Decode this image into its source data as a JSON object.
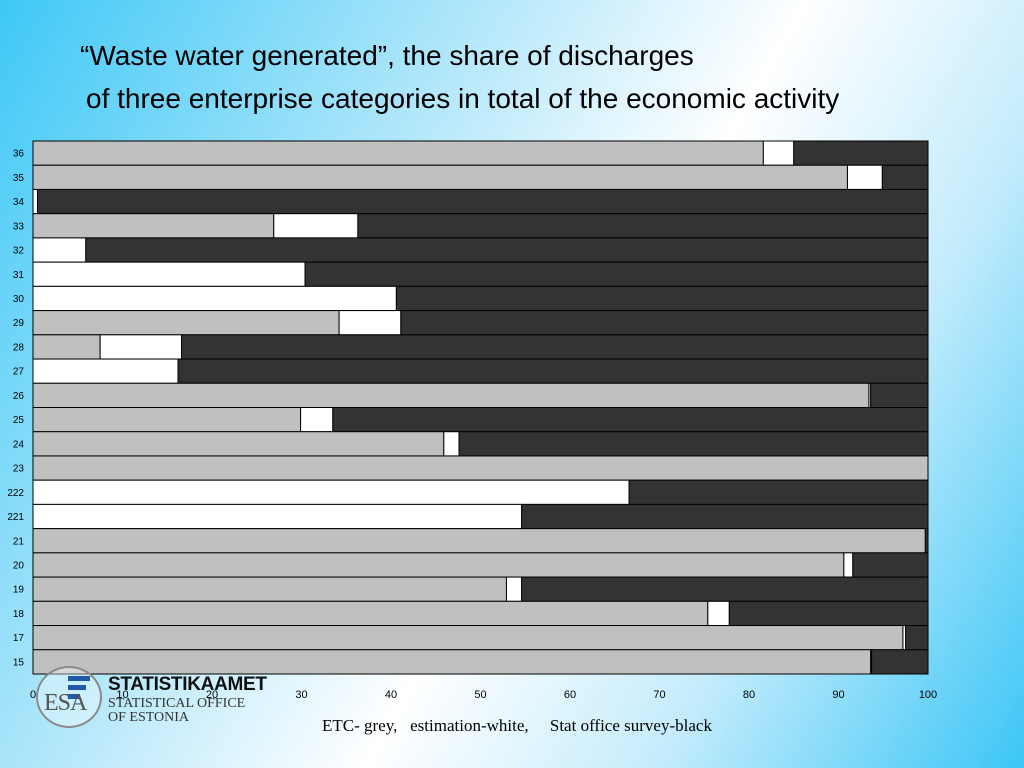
{
  "title": {
    "line1": "“Waste water generated”, the share of discharges",
    "line2": "of three enterprise categories in total of the economic activity"
  },
  "caption": "ETC- grey,   estimation-white,     Stat office survey-black",
  "logo": {
    "letters": "ESA",
    "name": "STATISTIKAAMET",
    "subtitle1": "STATISTICAL OFFICE",
    "subtitle2": "OF ESTONIA"
  },
  "chart_data": {
    "type": "bar",
    "orientation": "horizontal",
    "stacked": true,
    "categories": [
      "36",
      "35",
      "34",
      "33",
      "32",
      "31",
      "30",
      "29",
      "28",
      "27",
      "26",
      "25",
      "24",
      "23",
      "222",
      "221",
      "21",
      "20",
      "19",
      "18",
      "17",
      "15"
    ],
    "series": [
      {
        "name": "ETC",
        "color": "#c0c0c0",
        "values": [
          81.6,
          91.0,
          0,
          26.9,
          0,
          0,
          0,
          34.2,
          7.5,
          0,
          93.4,
          29.9,
          45.9,
          100,
          0,
          0,
          99.7,
          90.6,
          52.9,
          75.4,
          97.2,
          93.6
        ]
      },
      {
        "name": "estimation",
        "color": "#ffffff",
        "values": [
          3.4,
          3.9,
          0.5,
          9.4,
          5.9,
          30.4,
          40.6,
          6.9,
          9.1,
          16.2,
          0.2,
          3.6,
          1.7,
          0,
          66.6,
          54.6,
          0,
          1.0,
          1.7,
          2.4,
          0.3,
          0.1
        ]
      },
      {
        "name": "Stat office survey",
        "color": "#333333",
        "values": [
          15.0,
          5.1,
          99.5,
          63.7,
          94.1,
          69.6,
          59.4,
          58.9,
          83.4,
          83.8,
          6.4,
          66.5,
          52.4,
          0,
          33.4,
          45.4,
          0.3,
          8.4,
          45.4,
          22.2,
          2.5,
          6.3
        ]
      }
    ],
    "xlim": [
      0,
      100
    ],
    "xticks": [
      0,
      10,
      20,
      30,
      40,
      50,
      60,
      70,
      80,
      90,
      100
    ],
    "title": "",
    "xlabel": "",
    "ylabel": "",
    "grid": false,
    "legend": "none"
  }
}
